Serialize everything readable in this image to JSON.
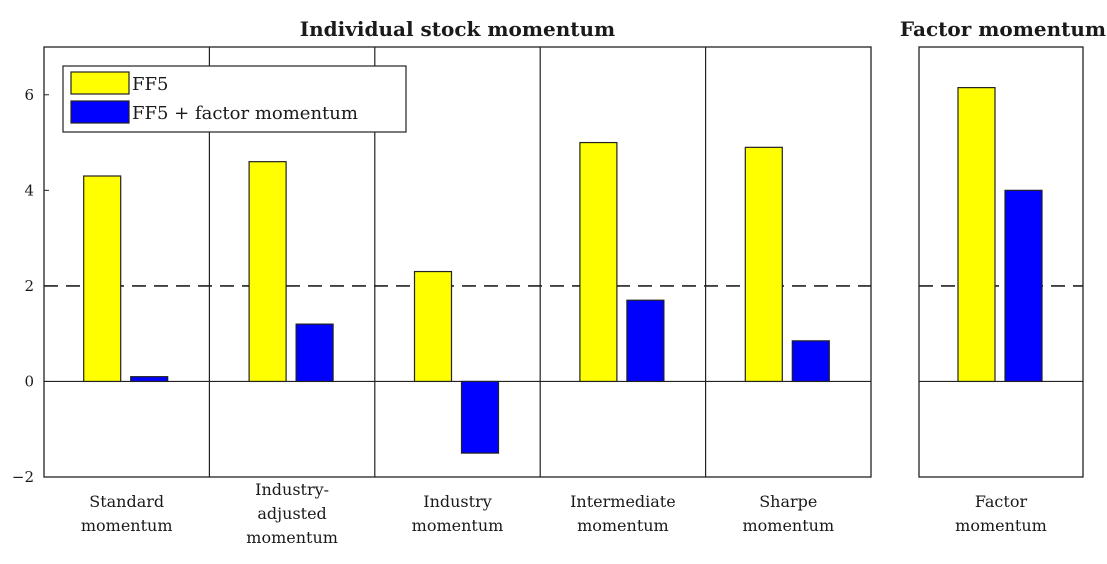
{
  "chart_data": {
    "type": "bar",
    "panels": [
      {
        "title": "Individual stock momentum",
        "categories": [
          [
            "Standard",
            "momentum"
          ],
          [
            "Industry-",
            "adjusted",
            "momentum"
          ],
          [
            "Industry",
            "momentum"
          ],
          [
            "Intermediate",
            "momentum"
          ],
          [
            "Sharpe",
            "momentum"
          ]
        ],
        "series": [
          {
            "name": "FF5",
            "color": "#ffff00",
            "values": [
              4.3,
              4.6,
              2.3,
              5.0,
              4.9
            ]
          },
          {
            "name": "FF5 + factor momentum",
            "color": "#0000ff",
            "values": [
              0.1,
              1.2,
              -1.5,
              1.7,
              0.85
            ]
          }
        ]
      },
      {
        "title": "Factor momentum",
        "categories": [
          [
            "Factor",
            "momentum"
          ]
        ],
        "series": [
          {
            "name": "FF5",
            "color": "#ffff00",
            "values": [
              6.15
            ]
          },
          {
            "name": "FF5 + factor momentum",
            "color": "#0000ff",
            "values": [
              4.0
            ]
          }
        ]
      }
    ],
    "ylim": [
      -2,
      7
    ],
    "yticks": [
      -2,
      0,
      2,
      4,
      6
    ],
    "reference_line": 2,
    "legend": {
      "position": "top-left",
      "entries": [
        "FF5",
        "FF5 + factor momentum"
      ]
    },
    "xlabel": "",
    "ylabel": ""
  }
}
